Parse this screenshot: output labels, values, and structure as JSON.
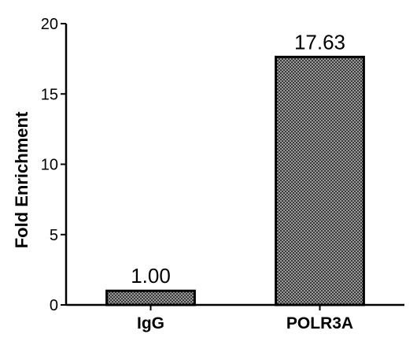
{
  "chart_data": {
    "type": "bar",
    "categories": [
      "IgG",
      "POLR3A"
    ],
    "values": [
      1.0,
      17.63
    ],
    "data_labels": [
      "1.00",
      "17.63"
    ],
    "title": "",
    "xlabel": "",
    "ylabel": "Fold Enrichment",
    "ylim": [
      0,
      20
    ],
    "yticks": [
      0,
      5,
      10,
      15,
      20
    ],
    "grid": false,
    "bar_fill": "dark crosshatch"
  }
}
